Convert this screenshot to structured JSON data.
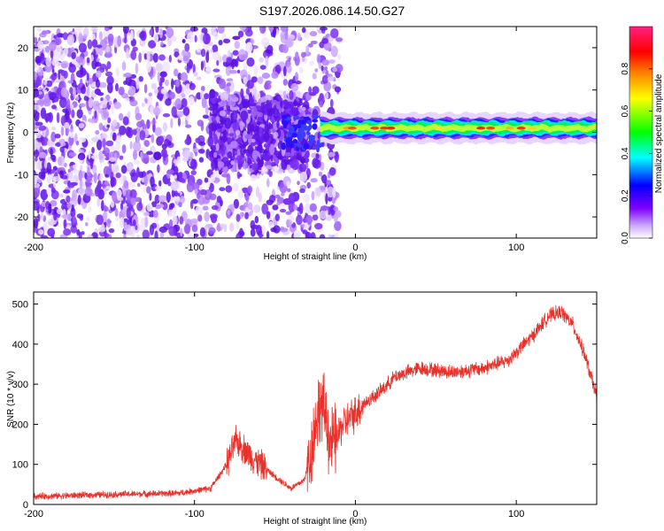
{
  "chart_data": [
    {
      "type": "heatmap",
      "title": "S197.2026.086.14.50.G27",
      "xlabel": "Height of straight line (km)",
      "ylabel": "Frequency (Hz)",
      "xlim": [
        -200,
        150
      ],
      "ylim": [
        -25,
        25
      ],
      "xticks": [
        -200,
        -100,
        0,
        100
      ],
      "yticks": [
        -20,
        -10,
        0,
        10,
        20
      ],
      "description_series": {
        "noise_region_x": [
          -200,
          -20
        ],
        "signal_line_start_x": -22,
        "signal_line_center_hz": 1,
        "signal_line_halfwidth_hz": 2
      },
      "colorbar": {
        "label": "Normalized spectral amplitude",
        "ticks": [
          "0.0",
          "0.2",
          "0.4",
          "0.6",
          "0.8"
        ],
        "range": [
          0,
          1
        ],
        "colors": [
          "#ffffff",
          "#7f00ff",
          "#0000ff",
          "#00ffff",
          "#00ff00",
          "#ffff00",
          "#ff8000",
          "#ff0000",
          "#ff0080"
        ]
      }
    },
    {
      "type": "line",
      "title": "",
      "xlabel": "Height of straight line (km)",
      "ylabel": "SNR (10 * v/v)",
      "xlim": [
        -200,
        150
      ],
      "ylim": [
        0,
        530
      ],
      "xticks": [
        -200,
        -100,
        0,
        100
      ],
      "yticks": [
        0,
        100,
        200,
        300,
        400,
        500
      ],
      "line_color": "#e8312b",
      "trend_x": [
        -200,
        -150,
        -110,
        -90,
        -80,
        -74,
        -65,
        -50,
        -40,
        -32,
        -28,
        -25,
        -22,
        -18,
        -16,
        -12,
        -8,
        -2,
        5,
        15,
        25,
        40,
        60,
        80,
        95,
        110,
        120,
        128,
        135,
        142,
        150
      ],
      "trend_y": [
        20,
        25,
        28,
        40,
        100,
        160,
        120,
        70,
        40,
        60,
        120,
        200,
        250,
        220,
        150,
        160,
        200,
        220,
        250,
        280,
        320,
        340,
        330,
        340,
        360,
        420,
        470,
        480,
        450,
        380,
        270
      ]
    }
  ]
}
